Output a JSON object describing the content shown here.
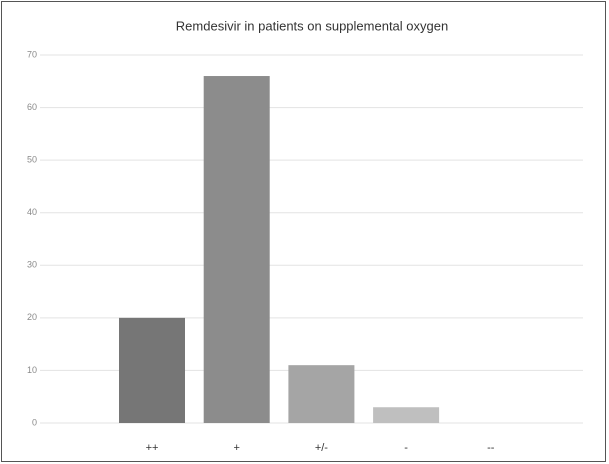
{
  "chart_data": {
    "type": "bar",
    "title": "Remdesivir in patients on supplemental oxygen",
    "categories": [
      "++",
      "+",
      "+/-",
      "-",
      "--"
    ],
    "values": [
      20,
      66,
      11,
      3,
      0
    ],
    "colors": [
      "#767676",
      "#8c8c8c",
      "#a5a5a5",
      "#bfbfbf",
      "#d9d9d9"
    ],
    "ylim": [
      0,
      70
    ],
    "yticks": [
      0,
      10,
      20,
      30,
      40,
      50,
      60,
      70
    ],
    "grid": true
  }
}
